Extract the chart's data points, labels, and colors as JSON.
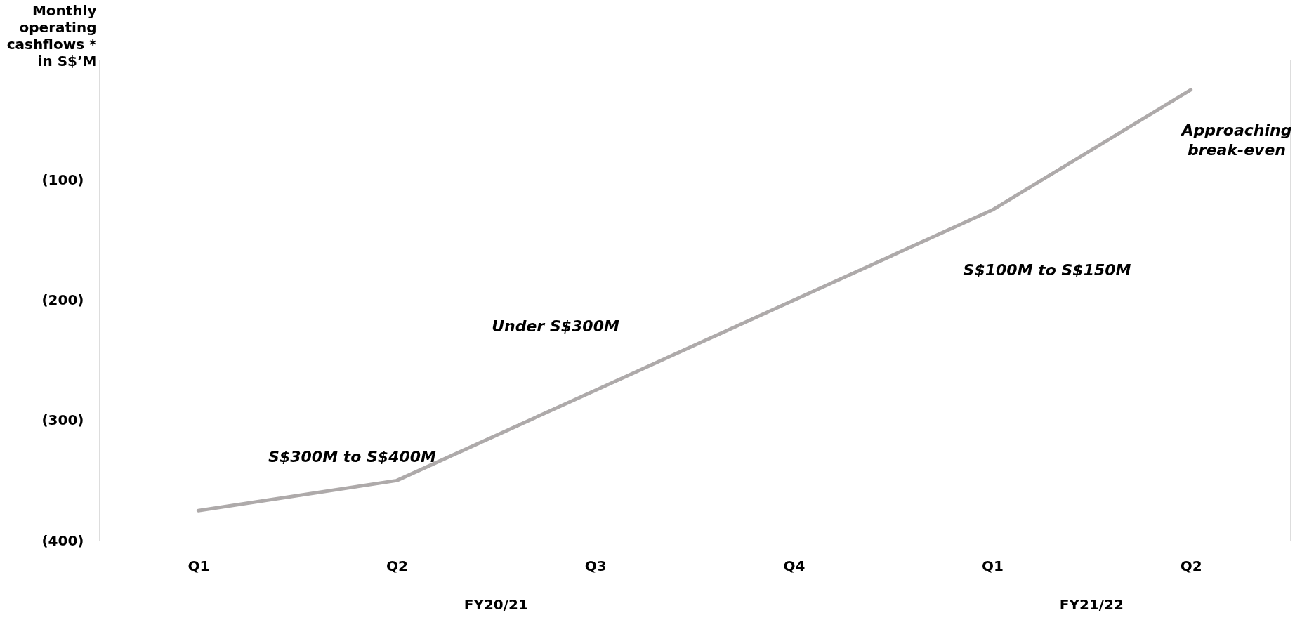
{
  "chart_data": {
    "type": "line",
    "ylabel": "Monthly operating cashflows * in S$’M",
    "categories": [
      "Q1",
      "Q2",
      "Q3",
      "Q4",
      "Q1",
      "Q2"
    ],
    "values": [
      -375,
      -350,
      -275,
      -200,
      -125,
      -25
    ],
    "color": "#aeaaaa",
    "ylim": [
      -400,
      0
    ],
    "yticks": [
      {
        "value": -400,
        "label": "(400)"
      },
      {
        "value": -300,
        "label": "(300)"
      },
      {
        "value": -200,
        "label": "(200)"
      },
      {
        "value": -100,
        "label": "(100)"
      }
    ],
    "grid": "y",
    "marker": "none",
    "line_style": "solid",
    "annotations": [
      "S$300M to S$400M",
      "Under S$300M",
      "S$100M to S$150M",
      "Approaching break-even",
      "FY20/21",
      "FY21/22"
    ]
  }
}
